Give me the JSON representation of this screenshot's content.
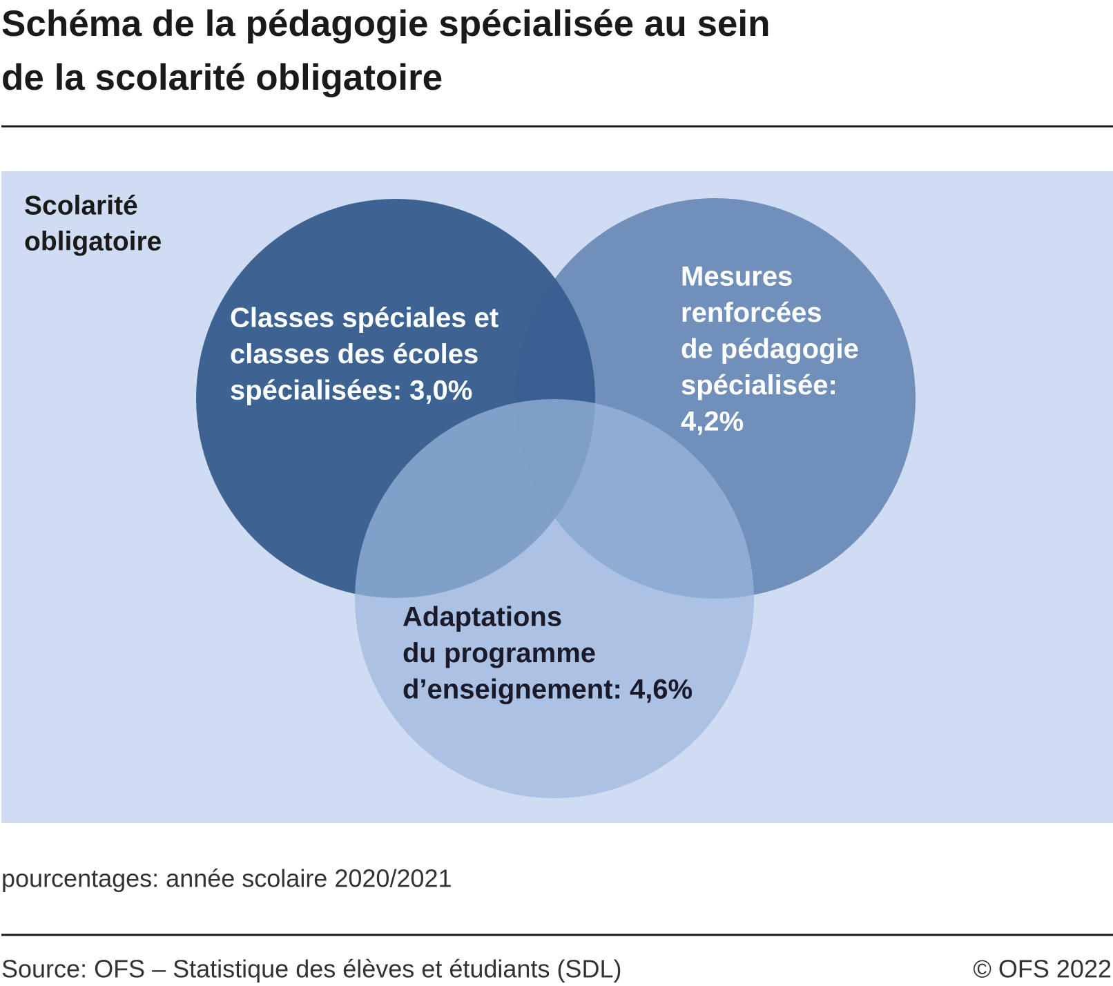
{
  "header": {
    "title": [
      "Schéma de la pédagogie spécialisée au sein",
      "de la scolarité obligatoire"
    ]
  },
  "diagram": {
    "label": [
      "Scolarité",
      "obligatoire"
    ],
    "circles": [
      {
        "label": [
          "Classes spéciales et",
          "classes des écoles",
          "spécialisées: 3,0%"
        ]
      },
      {
        "label": [
          "Mesures",
          "renforcées",
          "de pédagogie",
          "spécialisée:",
          "4,2%"
        ]
      },
      {
        "label": [
          "Adaptations",
          "du programme",
          "d’enseignement: 4,6%"
        ]
      }
    ]
  },
  "footer": {
    "note": "pourcentages: année scolaire 2020/2021",
    "source": "Source: OFS – Statistique des élèves et étudiants (SDL)",
    "copyright": "© OFS 2022"
  }
}
